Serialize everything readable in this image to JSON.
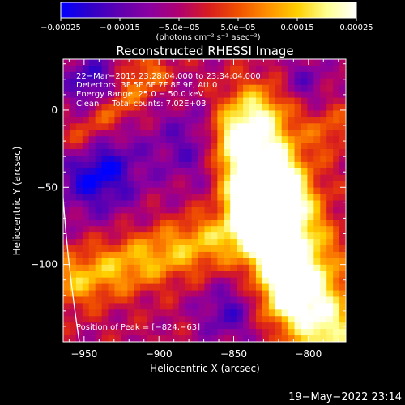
{
  "chart_data": {
    "type": "heatmap",
    "title": "Reconstructed RHESSI Image",
    "xlabel": "Heliocentric X (arcsec)",
    "ylabel": "Heliocentric Y (arcsec)",
    "xlim": [
      -964,
      -775
    ],
    "ylim": [
      -150,
      33
    ],
    "x_ticks": [
      -950,
      -900,
      -850,
      -800
    ],
    "y_ticks": [
      0,
      -50,
      -100
    ],
    "x_tick_labels": [
      "−950",
      "−900",
      "−850",
      "−800"
    ],
    "y_tick_labels": [
      "0",
      "−50",
      "−100"
    ],
    "colorbar": {
      "range": [
        -0.00025,
        0.00025
      ],
      "tick_values": [
        -0.00025,
        -0.00015,
        -5e-05,
        5e-05,
        0.00015,
        0.00025
      ],
      "tick_labels": [
        "−0.00025",
        "−0.00015",
        "−5.0e−05",
        "5.0e−05",
        "0.00015",
        "0.00025"
      ],
      "unit_label": "(photons cm⁻² s⁻¹ asec⁻²)",
      "colors": [
        "#0000ff",
        "#3000c8",
        "#6000b0",
        "#8a00a0",
        "#b00070",
        "#d81c20",
        "#f05000",
        "#ff9000",
        "#ffd000",
        "#ffff90",
        "#ffffff"
      ]
    },
    "annotations": [
      "22−Mar−2015 23:28:04.000 to 23:34:04.000",
      "Detectors: 3F 5F 6F 7F 8F 9F, Att 0",
      "Energy Range: 25.0 − 50.0 keV",
      "Clean     Total counts: 7.02E+03",
      "Position of Peak = [−824,−63]"
    ],
    "peak": [
      -824,
      -63
    ],
    "grid": false
  },
  "footer": {
    "timestamp": "19−May−2022 23:14"
  }
}
